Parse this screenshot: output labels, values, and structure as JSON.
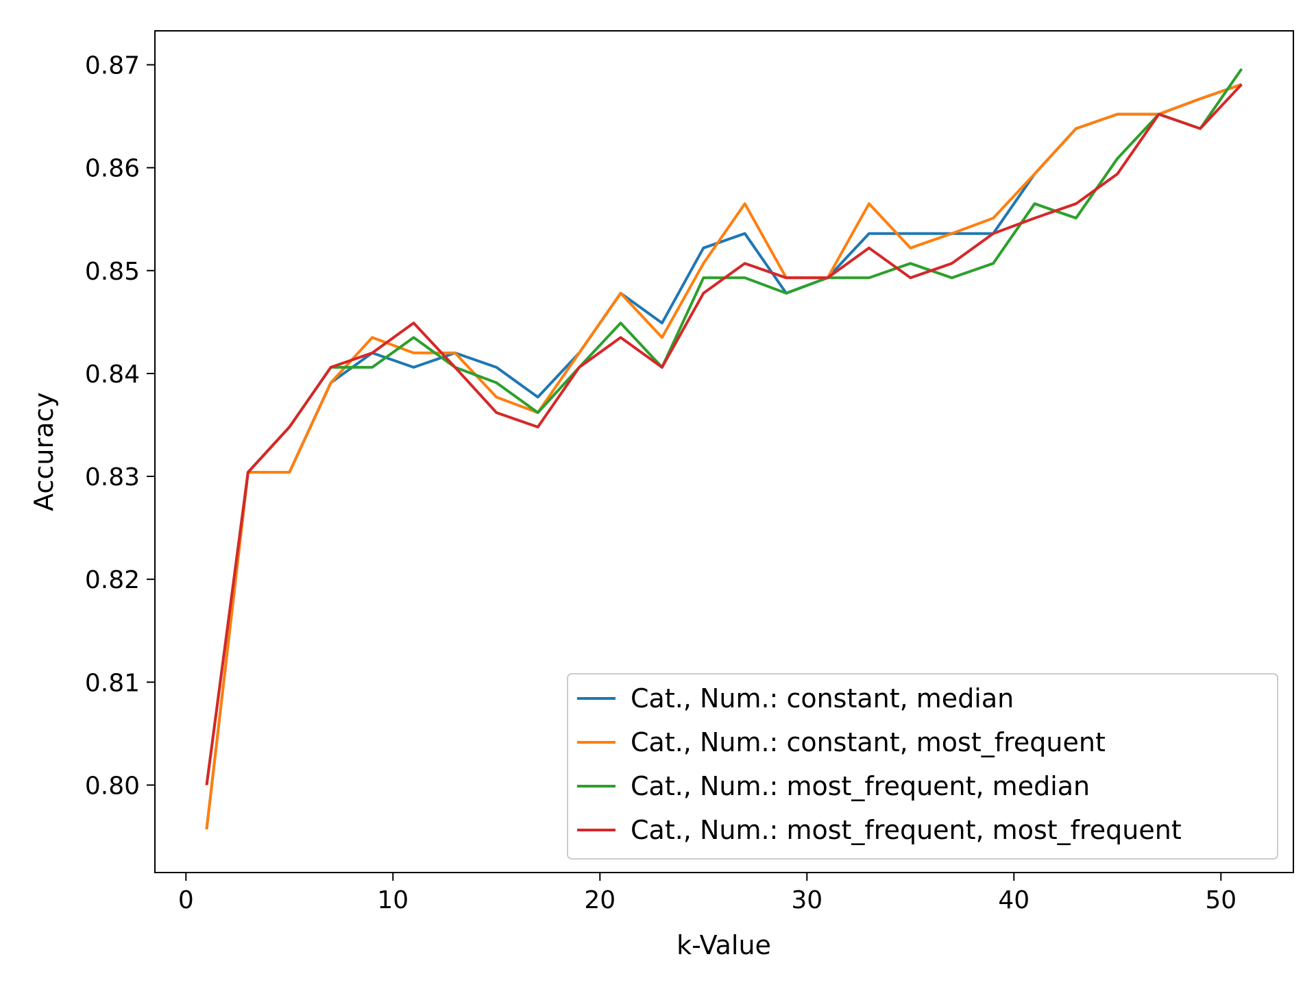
{
  "chart_data": {
    "type": "line",
    "title": "",
    "xlabel": "k-Value",
    "ylabel": "Accuracy",
    "xlim": [
      -1.5,
      53.5
    ],
    "ylim": [
      0.7915,
      0.8733
    ],
    "xticks": [
      0,
      10,
      20,
      30,
      40,
      50
    ],
    "yticks": [
      0.8,
      0.81,
      0.82,
      0.83,
      0.84,
      0.85,
      0.86,
      0.87
    ],
    "xtick_labels": [
      "0",
      "10",
      "20",
      "30",
      "40",
      "50"
    ],
    "ytick_labels": [
      "0.80",
      "0.81",
      "0.82",
      "0.83",
      "0.84",
      "0.85",
      "0.86",
      "0.87"
    ],
    "grid": false,
    "legend_position": "lower-right",
    "x": [
      1,
      3,
      5,
      7,
      9,
      11,
      13,
      15,
      17,
      19,
      21,
      23,
      25,
      27,
      29,
      31,
      33,
      35,
      37,
      39,
      41,
      43,
      45,
      47,
      49,
      51
    ],
    "series": [
      {
        "name": "Cat., Num.: constant, median",
        "color": "#1f77b4",
        "values": [
          0.7957,
          0.8304,
          0.8304,
          0.8391,
          0.842,
          0.8406,
          0.842,
          0.8406,
          0.8377,
          0.842,
          0.8478,
          0.8449,
          0.8522,
          0.8536,
          0.8478,
          0.8493,
          0.8536,
          0.8536,
          0.8536,
          0.8536,
          0.8594,
          0.8638,
          0.8652,
          0.8652,
          0.8667,
          0.8681
        ]
      },
      {
        "name": "Cat., Num.: constant, most_frequent",
        "color": "#ff7f0e",
        "values": [
          0.7957,
          0.8304,
          0.8304,
          0.8391,
          0.8435,
          0.842,
          0.842,
          0.8377,
          0.8362,
          0.842,
          0.8478,
          0.8435,
          0.8507,
          0.8565,
          0.8493,
          0.8493,
          0.8565,
          0.8522,
          0.8536,
          0.8551,
          0.8594,
          0.8638,
          0.8652,
          0.8652,
          0.8667,
          0.8681
        ]
      },
      {
        "name": "Cat., Num.: most_frequent, median",
        "color": "#2ca02c",
        "values": [
          0.8,
          0.8304,
          0.8348,
          0.8406,
          0.8406,
          0.8435,
          0.8406,
          0.8391,
          0.8362,
          0.8406,
          0.8449,
          0.8406,
          0.8493,
          0.8493,
          0.8478,
          0.8493,
          0.8493,
          0.8507,
          0.8493,
          0.8507,
          0.8565,
          0.8551,
          0.8609,
          0.8652,
          0.8638,
          0.8696
        ]
      },
      {
        "name": "Cat., Num.: most_frequent, most_frequent",
        "color": "#d62728",
        "values": [
          0.8,
          0.8304,
          0.8348,
          0.8406,
          0.842,
          0.8449,
          0.8406,
          0.8362,
          0.8348,
          0.8406,
          0.8435,
          0.8406,
          0.8478,
          0.8507,
          0.8493,
          0.8493,
          0.8522,
          0.8493,
          0.8507,
          0.8536,
          0.8551,
          0.8565,
          0.8594,
          0.8652,
          0.8638,
          0.8681
        ]
      }
    ]
  }
}
